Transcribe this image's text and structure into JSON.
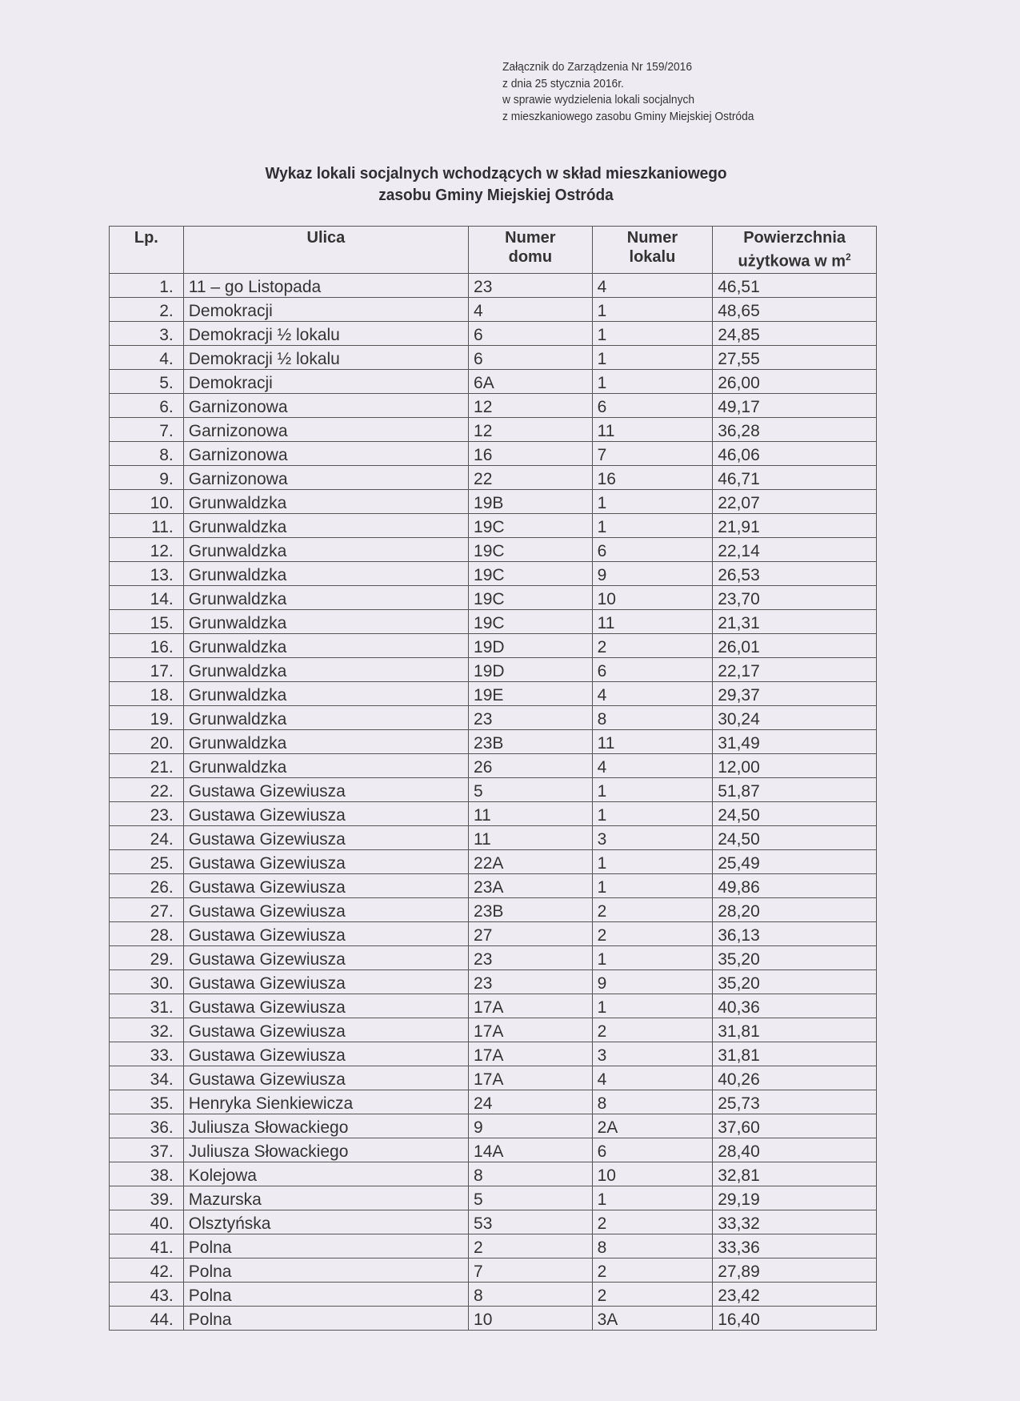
{
  "annex": {
    "line1": "Załącznik do Zarządzenia Nr  159/2016",
    "line2": "z  dnia 25 stycznia 2016r.",
    "line3": "w sprawie wydzielenia lokali socjalnych",
    "line4": "z mieszkaniowego zasobu Gminy Miejskiej Ostróda"
  },
  "title": {
    "line1": "Wykaz lokali socjalnych wchodzących w skład mieszkaniowego",
    "line2": "zasobu Gminy Miejskiej Ostróda"
  },
  "table": {
    "headers": {
      "lp": "Lp.",
      "ulica": "Ulica",
      "numer_domu_1": "Numer",
      "numer_domu_2": "domu",
      "numer_lokalu_1": "Numer",
      "numer_lokalu_2": "lokalu",
      "powierzchnia_1": "Powierzchnia",
      "powierzchnia_2": "użytkowa w m",
      "powierzchnia_sup": "2"
    },
    "rows": [
      [
        "1.",
        "11 – go Listopada",
        "23",
        "4",
        "46,51"
      ],
      [
        "2.",
        "Demokracji",
        "4",
        "1",
        "48,65"
      ],
      [
        "3.",
        "Demokracji ½ lokalu",
        "6",
        "1",
        "24,85"
      ],
      [
        "4.",
        "Demokracji ½ lokalu",
        "6",
        "1",
        "27,55"
      ],
      [
        "5.",
        "Demokracji",
        "6A",
        "1",
        "26,00"
      ],
      [
        "6.",
        "Garnizonowa",
        "12",
        "6",
        "49,17"
      ],
      [
        "7.",
        "Garnizonowa",
        "12",
        "11",
        "36,28"
      ],
      [
        "8.",
        "Garnizonowa",
        "16",
        "7",
        "46,06"
      ],
      [
        "9.",
        "Garnizonowa",
        "22",
        "16",
        "46,71"
      ],
      [
        "10.",
        "Grunwaldzka",
        "19B",
        "1",
        "22,07"
      ],
      [
        "11.",
        "Grunwaldzka",
        "19C",
        "1",
        "21,91"
      ],
      [
        "12.",
        "Grunwaldzka",
        "19C",
        "6",
        "22,14"
      ],
      [
        "13.",
        "Grunwaldzka",
        "19C",
        "9",
        "26,53"
      ],
      [
        "14.",
        "Grunwaldzka",
        "19C",
        "10",
        "23,70"
      ],
      [
        "15.",
        "Grunwaldzka",
        "19C",
        "11",
        "21,31"
      ],
      [
        "16.",
        "Grunwaldzka",
        "19D",
        "2",
        "26,01"
      ],
      [
        "17.",
        "Grunwaldzka",
        "19D",
        "6",
        "22,17"
      ],
      [
        "18.",
        "Grunwaldzka",
        "19E",
        "4",
        "29,37"
      ],
      [
        "19.",
        "Grunwaldzka",
        "23",
        "8",
        "30,24"
      ],
      [
        "20.",
        "Grunwaldzka",
        "23B",
        "11",
        "31,49"
      ],
      [
        "21.",
        "Grunwaldzka",
        "26",
        "4",
        "12,00"
      ],
      [
        "22.",
        "Gustawa Gizewiusza",
        "5",
        "1",
        "51,87"
      ],
      [
        "23.",
        "Gustawa Gizewiusza",
        "11",
        "1",
        "24,50"
      ],
      [
        "24.",
        "Gustawa Gizewiusza",
        "11",
        "3",
        "24,50"
      ],
      [
        "25.",
        "Gustawa Gizewiusza",
        "22A",
        "1",
        "25,49"
      ],
      [
        "26.",
        "Gustawa Gizewiusza",
        "23A",
        "1",
        "49,86"
      ],
      [
        "27.",
        "Gustawa Gizewiusza",
        "23B",
        "2",
        "28,20"
      ],
      [
        "28.",
        "Gustawa Gizewiusza",
        "27",
        "2",
        "36,13"
      ],
      [
        "29.",
        "Gustawa Gizewiusza",
        "23",
        "1",
        "35,20"
      ],
      [
        "30.",
        "Gustawa Gizewiusza",
        "23",
        "9",
        "35,20"
      ],
      [
        "31.",
        "Gustawa Gizewiusza",
        "17A",
        "1",
        "40,36"
      ],
      [
        "32.",
        "Gustawa Gizewiusza",
        "17A",
        "2",
        "31,81"
      ],
      [
        "33.",
        "Gustawa Gizewiusza",
        "17A",
        "3",
        "31,81"
      ],
      [
        "34.",
        "Gustawa Gizewiusza",
        "17A",
        "4",
        "40,26"
      ],
      [
        "35.",
        "Henryka Sienkiewicza",
        "24",
        "8",
        "25,73"
      ],
      [
        "36.",
        "Juliusza Słowackiego",
        "9",
        "2A",
        "37,60"
      ],
      [
        "37.",
        "Juliusza Słowackiego",
        "14A",
        "6",
        "28,40"
      ],
      [
        "38.",
        "Kolejowa",
        "8",
        "10",
        "32,81"
      ],
      [
        "39.",
        "Mazurska",
        "5",
        "1",
        "29,19"
      ],
      [
        "40.",
        "Olsztyńska",
        "53",
        "2",
        "33,32"
      ],
      [
        "41.",
        "Polna",
        "2",
        "8",
        "33,36"
      ],
      [
        "42.",
        "Polna",
        "7",
        "2",
        "27,89"
      ],
      [
        "43.",
        "Polna",
        "8",
        "2",
        "23,42"
      ],
      [
        "44.",
        "Polna",
        "10",
        "3A",
        "16,40"
      ]
    ]
  }
}
